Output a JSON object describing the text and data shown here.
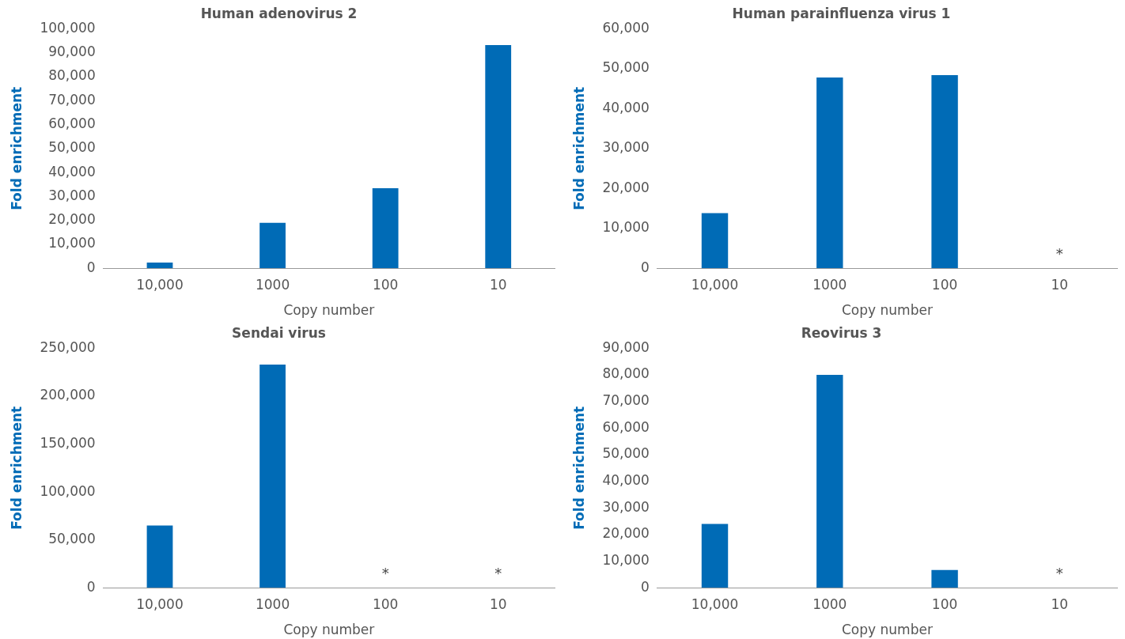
{
  "chart_data": [
    {
      "type": "bar",
      "title": "Human adenovirus 2",
      "xlabel": "Copy number",
      "ylabel": "Fold enrichment",
      "categories": [
        "10,000",
        "1000",
        "100",
        "10"
      ],
      "values": [
        2400,
        19000,
        33400,
        93200
      ],
      "color": "#006bb6",
      "ylim": [
        0,
        100000
      ],
      "yticks": [
        {
          "value": 0,
          "label": "0"
        },
        {
          "value": 10000,
          "label": "10,000"
        },
        {
          "value": 20000,
          "label": "20,000"
        },
        {
          "value": 30000,
          "label": "30,000"
        },
        {
          "value": 40000,
          "label": "40,000"
        },
        {
          "value": 50000,
          "label": "50,000"
        },
        {
          "value": 60000,
          "label": "60,000"
        },
        {
          "value": 70000,
          "label": "70,000"
        },
        {
          "value": 80000,
          "label": "80,000"
        },
        {
          "value": 90000,
          "label": "90,000"
        },
        {
          "value": 100000,
          "label": "100,000"
        }
      ],
      "grid": false,
      "legend": false
    },
    {
      "type": "bar",
      "title": "Human parainfluenza virus 1",
      "xlabel": "Copy number",
      "ylabel": "Fold enrichment",
      "categories": [
        "10,000",
        "1000",
        "100",
        "10"
      ],
      "values": [
        13800,
        47800,
        48400,
        0
      ],
      "color": "#006bb6",
      "ylim": [
        0,
        60000
      ],
      "yticks": [
        {
          "value": 0,
          "label": "0"
        },
        {
          "value": 10000,
          "label": "10,000"
        },
        {
          "value": 20000,
          "label": "20,000"
        },
        {
          "value": 30000,
          "label": "30,000"
        },
        {
          "value": 40000,
          "label": "40,000"
        },
        {
          "value": 50000,
          "label": "50,000"
        },
        {
          "value": 60000,
          "label": "60,000"
        }
      ],
      "grid": false,
      "legend": false,
      "annotations": [
        {
          "text": "*",
          "x": "10",
          "y": 0
        }
      ]
    },
    {
      "type": "bar",
      "title": "Sendai virus",
      "xlabel": "Copy number",
      "ylabel": "Fold enrichment",
      "categories": [
        "10,000",
        "1000",
        "100",
        "10"
      ],
      "values": [
        65000,
        233000,
        0,
        0
      ],
      "color": "#006bb6",
      "ylim": [
        0,
        250000
      ],
      "yticks": [
        {
          "value": 0,
          "label": "0"
        },
        {
          "value": 50000,
          "label": "50,000"
        },
        {
          "value": 100000,
          "label": "100,000"
        },
        {
          "value": 150000,
          "label": "150,000"
        },
        {
          "value": 200000,
          "label": "200,000"
        },
        {
          "value": 250000,
          "label": "250,000"
        }
      ],
      "grid": false,
      "legend": false,
      "annotations": [
        {
          "text": "*",
          "x": "100",
          "y": 0
        },
        {
          "text": "*",
          "x": "10",
          "y": 0
        }
      ]
    },
    {
      "type": "bar",
      "title": "Reovirus 3",
      "xlabel": "Copy number",
      "ylabel": "Fold enrichment",
      "categories": [
        "10,000",
        "1000",
        "100",
        "10"
      ],
      "values": [
        24000,
        80000,
        6700,
        0
      ],
      "color": "#006bb6",
      "ylim": [
        0,
        90000
      ],
      "yticks": [
        {
          "value": 0,
          "label": "0"
        },
        {
          "value": 10000,
          "label": "10,000"
        },
        {
          "value": 20000,
          "label": "20,000"
        },
        {
          "value": 30000,
          "label": "30,000"
        },
        {
          "value": 40000,
          "label": "40,000"
        },
        {
          "value": 50000,
          "label": "50,000"
        },
        {
          "value": 60000,
          "label": "60,000"
        },
        {
          "value": 70000,
          "label": "70,000"
        },
        {
          "value": 80000,
          "label": "80,000"
        },
        {
          "value": 90000,
          "label": "90,000"
        }
      ],
      "grid": false,
      "legend": false,
      "annotations": [
        {
          "text": "*",
          "x": "10",
          "y": 0
        }
      ]
    }
  ]
}
